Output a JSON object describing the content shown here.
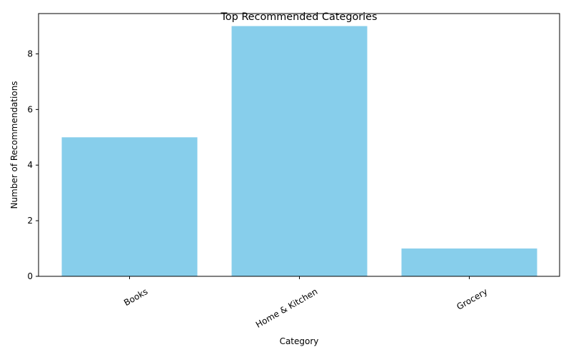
{
  "chart_data": {
    "type": "bar",
    "title": "Top Recommended Categories",
    "xlabel": "Category",
    "ylabel": "Number of Recommendations",
    "categories": [
      "Books",
      "Home & Kitchen",
      "Grocery"
    ],
    "values": [
      5,
      9,
      1
    ],
    "ylim": [
      0,
      9.45
    ],
    "yticks": [
      0,
      2,
      4,
      6,
      8
    ],
    "bar_color": "#87CEEB",
    "grid": false,
    "xtick_rotation": 30
  }
}
